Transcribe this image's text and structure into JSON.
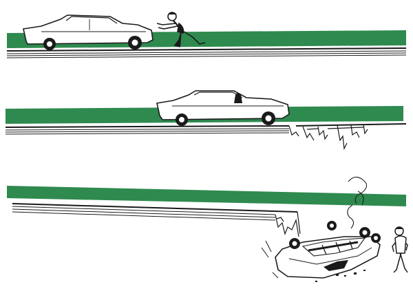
{
  "colors": {
    "paper": "#ffffff",
    "grass_green": "#2f8a4f",
    "ink": "#1a1a1a",
    "car_body": "#ffffff"
  },
  "panels": [
    {
      "scene": "man-pushing-car-toward-intact-road"
    },
    {
      "scene": "car-driving-toward-broken-road-edge"
    },
    {
      "scene": "car-overturned-below-collapsed-road-with-man-standing-by"
    }
  ]
}
